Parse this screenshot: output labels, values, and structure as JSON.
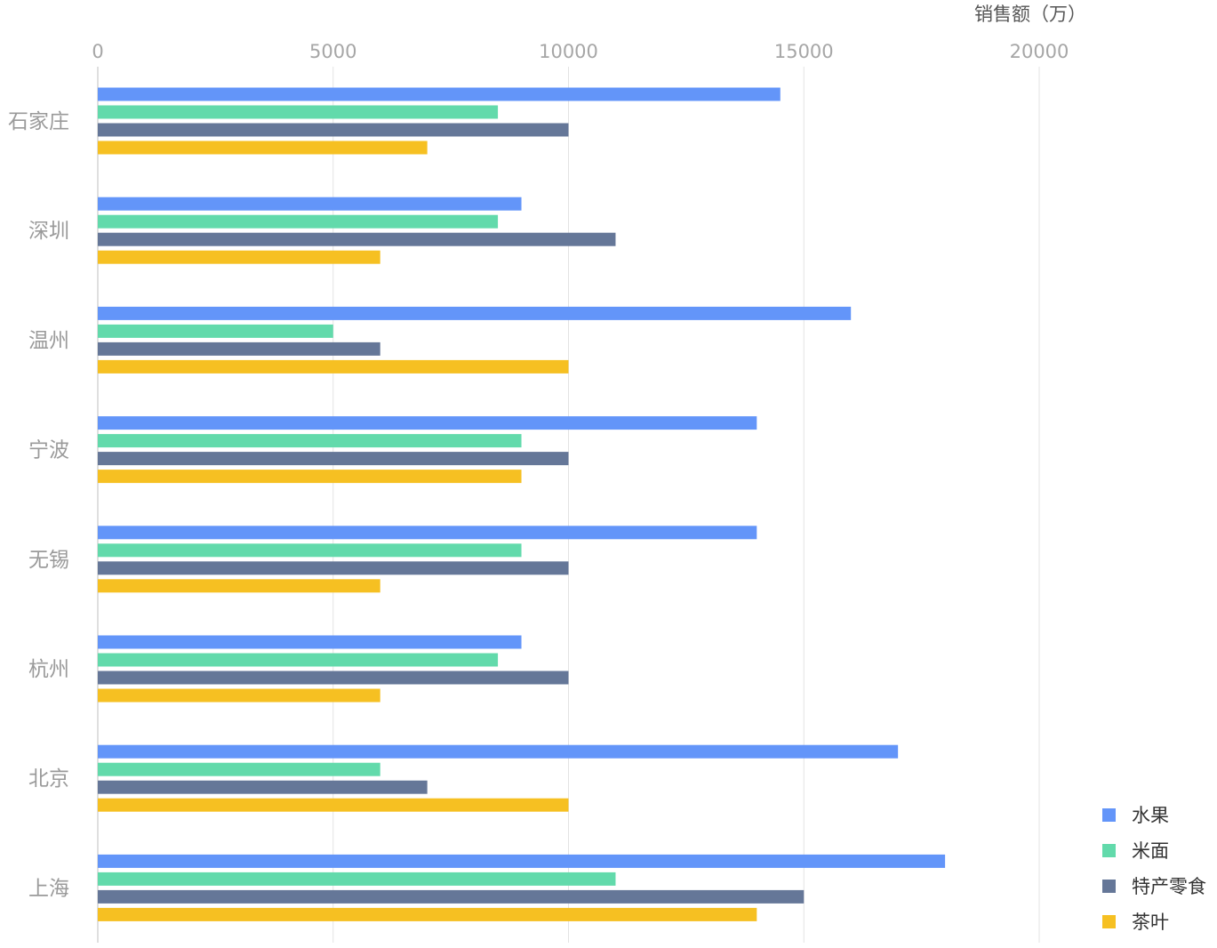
{
  "chart_data": {
    "type": "bar",
    "orientation": "horizontal",
    "title": "",
    "xlabel": "销售额（万）",
    "ylabel": "",
    "xlim": [
      0,
      20000
    ],
    "xticks": [
      0,
      5000,
      10000,
      15000,
      20000
    ],
    "xtick_labels": [
      "0",
      "5000",
      "10000",
      "15000",
      "20000"
    ],
    "grid": "vertical",
    "legend_position": "bottom-right",
    "categories": [
      "石家庄",
      "深圳",
      "温州",
      "宁波",
      "无锡",
      "杭州",
      "北京",
      "上海"
    ],
    "series": [
      {
        "name": "水果",
        "color": "#6395F9",
        "values": [
          14500,
          9000,
          16000,
          14000,
          14000,
          9000,
          17000,
          18000
        ]
      },
      {
        "name": "米面",
        "color": "#62DAAB",
        "values": [
          8500,
          8500,
          5000,
          9000,
          9000,
          8500,
          6000,
          11000
        ]
      },
      {
        "name": "特产零食",
        "color": "#657798",
        "values": [
          10000,
          11000,
          6000,
          10000,
          10000,
          10000,
          7000,
          15000
        ]
      },
      {
        "name": "茶叶",
        "color": "#F6C022",
        "values": [
          7000,
          6000,
          10000,
          9000,
          6000,
          6000,
          10000,
          14000
        ]
      }
    ]
  }
}
